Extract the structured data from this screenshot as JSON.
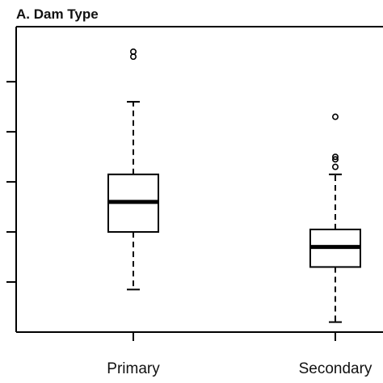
{
  "chart_data": {
    "type": "box",
    "title": "A. Dam Type",
    "xlabel": "",
    "ylabel": "",
    "categories": [
      "Primary",
      "Secondary"
    ],
    "y_ticks": [
      1,
      2,
      3,
      4,
      5
    ],
    "ylim": [
      0.0,
      6.1
    ],
    "grid": false,
    "series": [
      {
        "category": "Primary",
        "whisker_low": 0.85,
        "q1": 2.0,
        "median": 2.6,
        "q3": 3.15,
        "whisker_high": 4.6,
        "outliers": [
          5.5,
          5.6
        ]
      },
      {
        "category": "Secondary",
        "whisker_low": 0.2,
        "q1": 1.3,
        "median": 1.7,
        "q3": 2.05,
        "whisker_high": 3.15,
        "outliers": [
          3.3,
          3.45,
          3.5,
          4.3
        ]
      }
    ]
  }
}
